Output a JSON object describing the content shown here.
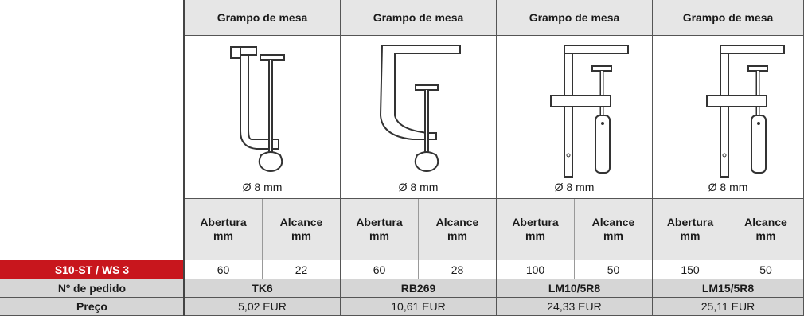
{
  "columns": [
    {
      "title": "Grampo de mesa",
      "diameter": "Ø 8 mm",
      "opening_label": "Abertura mm",
      "reach_label": "Alcance mm",
      "opening": 60,
      "reach": 22,
      "order": "TK6",
      "price": "5,02 EUR"
    },
    {
      "title": "Grampo de mesa",
      "diameter": "Ø 8 mm",
      "opening_label": "Abertura mm",
      "reach_label": "Alcance mm",
      "opening": 60,
      "reach": 28,
      "order": "RB269",
      "price": "10,61 EUR"
    },
    {
      "title": "Grampo de mesa",
      "diameter": "Ø 8 mm",
      "opening_label": "Abertura mm",
      "reach_label": "Alcance mm",
      "opening": 100,
      "reach": 50,
      "order": "LM10/5R8",
      "price": "24,33 EUR"
    },
    {
      "title": "Grampo de mesa",
      "diameter": "Ø 8 mm",
      "opening_label": "Abertura mm",
      "reach_label": "Alcance mm",
      "opening": 150,
      "reach": 50,
      "order": "LM15/5R8",
      "price": "25,11 EUR"
    }
  ],
  "row_labels": {
    "model": "S10-ST / WS 3",
    "order": "Nº de pedido",
    "price": "Preço"
  }
}
